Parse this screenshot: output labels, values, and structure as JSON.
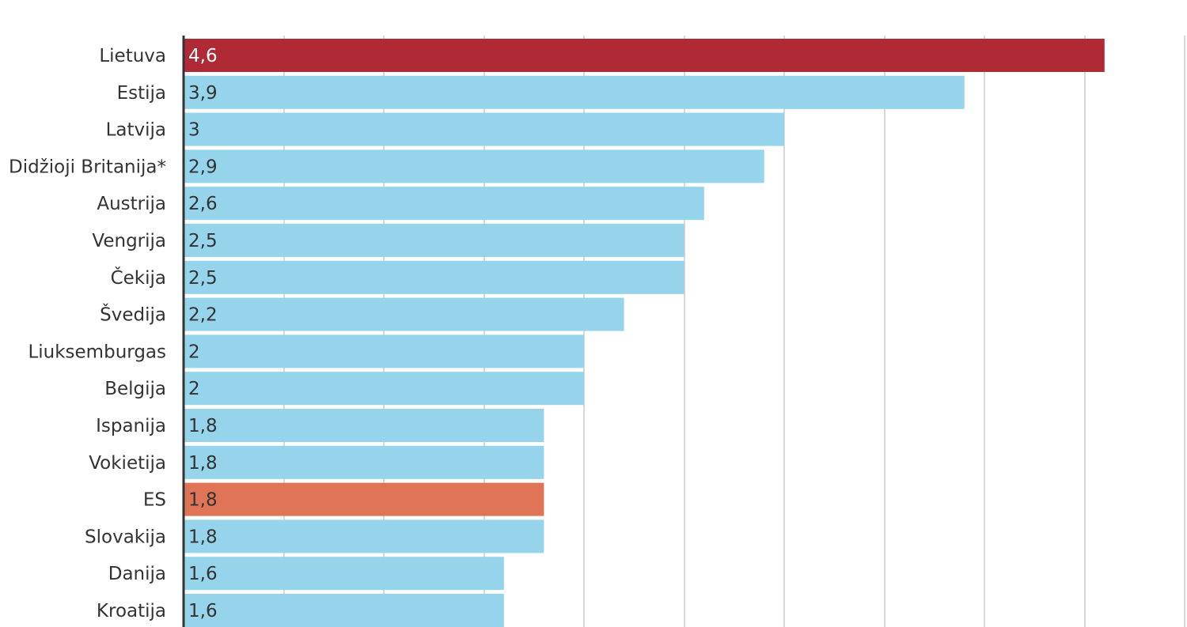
{
  "chart_data": {
    "type": "bar",
    "orientation": "horizontal",
    "categories": [
      "Lietuva",
      "Estija",
      "Latvija",
      "Didžioji Britanija*",
      "Austrija",
      "Vengrija",
      "Čekija",
      "Švedija",
      "Liuksemburgas",
      "Belgija",
      "Ispanija",
      "Vokietija",
      "ES",
      "Slovakija",
      "Danija",
      "Kroatija"
    ],
    "values": [
      4.6,
      3.9,
      3.0,
      2.9,
      2.6,
      2.5,
      2.5,
      2.2,
      2.0,
      2.0,
      1.8,
      1.8,
      1.8,
      1.8,
      1.6,
      1.6
    ],
    "value_labels": [
      "4,6",
      "3,9",
      "3",
      "2,9",
      "2,6",
      "2,5",
      "2,5",
      "2,2",
      "2",
      "2",
      "1,8",
      "1,8",
      "1,8",
      "1,8",
      "1,6",
      "1,6"
    ],
    "xlim": [
      0,
      5
    ],
    "gridlines": [
      0.5,
      1,
      1.5,
      2,
      2.5,
      3,
      3.5,
      4,
      4.5,
      5
    ],
    "grid": true,
    "title": "",
    "xlabel": "",
    "ylabel": ""
  },
  "colors": {
    "default_bar": "#96d4ec",
    "highlight_lietuva": "#b02a36",
    "highlight_es": "#e07457",
    "gridline": "#cccccc",
    "axis": "#333333",
    "label_dark": "#333333",
    "label_light": "#ffffff"
  },
  "bar_color_keys": [
    "highlight_lietuva",
    "default_bar",
    "default_bar",
    "default_bar",
    "default_bar",
    "default_bar",
    "default_bar",
    "default_bar",
    "default_bar",
    "default_bar",
    "default_bar",
    "default_bar",
    "highlight_es",
    "default_bar",
    "default_bar",
    "default_bar"
  ]
}
